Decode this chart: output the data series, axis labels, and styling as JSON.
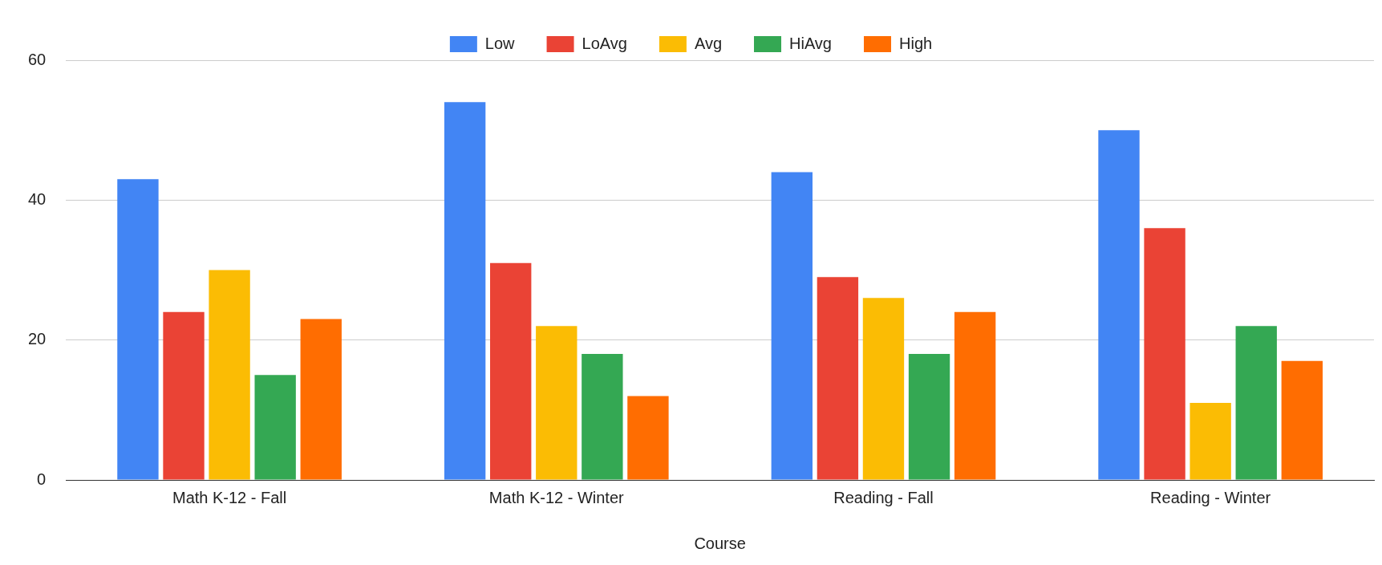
{
  "chart_data": {
    "type": "bar",
    "xlabel": "Course",
    "categories": [
      "Math K-12 - Fall",
      "Math K-12 - Winter",
      "Reading - Fall",
      "Reading - Winter"
    ],
    "series": [
      {
        "name": "Low",
        "color": "#4285f4",
        "values": [
          43,
          54,
          44,
          50
        ]
      },
      {
        "name": "LoAvg",
        "color": "#ea4335",
        "values": [
          24,
          31,
          29,
          36
        ]
      },
      {
        "name": "Avg",
        "color": "#fbbc04",
        "values": [
          30,
          22,
          26,
          11
        ]
      },
      {
        "name": "HiAvg",
        "color": "#34a853",
        "values": [
          15,
          18,
          18,
          22
        ]
      },
      {
        "name": "High",
        "color": "#ff6d01",
        "values": [
          23,
          12,
          24,
          17
        ]
      }
    ],
    "ylim": [
      0,
      60
    ],
    "yticks": [
      0,
      20,
      40,
      60
    ],
    "grid": "y",
    "legend": "top"
  }
}
